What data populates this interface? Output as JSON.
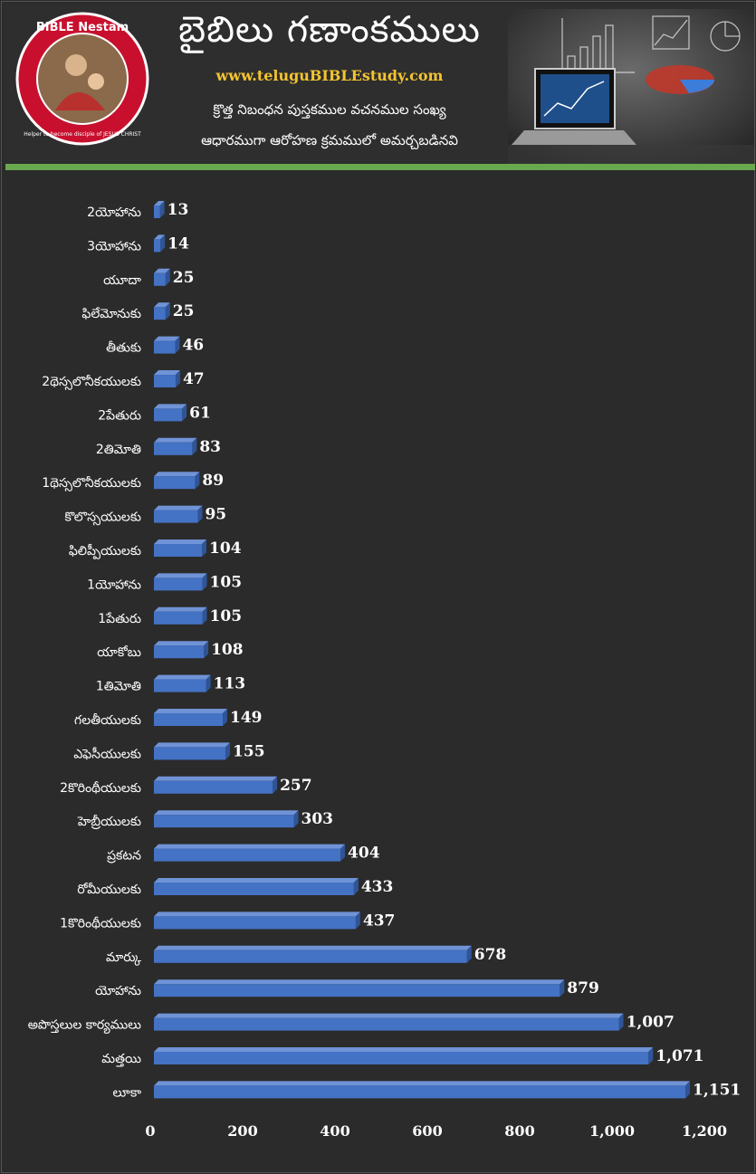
{
  "header": {
    "title": "బైబిలు గణాంకములు",
    "website": "www.teluguBIBLEstudy.com",
    "subtitle_line1": "క్రొత్త నిబంధన పుస్తకముల వచనముల సంఖ్య",
    "subtitle_line2": "ఆధారముగా ఆరోహణ క్రమములో అమర్చబడినవి",
    "logo_text": "BIBLE Nestam",
    "logo_tagline": "Helper to become disciple of JESUS CHRIST"
  },
  "colors": {
    "bar": "#4472c4",
    "bar_side": "#2f5597",
    "accent": "#6aa84f",
    "site_text": "#f4c430"
  },
  "chart_data": {
    "type": "bar",
    "orientation": "horizontal",
    "categories": [
      "2యోహాను",
      "3యోహాను",
      "యూదా",
      "ఫిలేమోనుకు",
      "తీతుకు",
      "2థెస్సలొనీకయులకు",
      "2పేతురు",
      "2తిమోతి",
      "1థెస్సలొనీకయులకు",
      "కొలొస్సయులకు",
      "ఫిలిప్పీయులకు",
      "1యోహాను",
      "1పేతురు",
      "యాకోబు",
      "1తిమోతి",
      "గలతీయులకు",
      "ఎఫెసీయులకు",
      "2కొరింథీయులకు",
      "హెబ్రీయులకు",
      "ప్రకటన",
      "రోమీయులకు",
      "1కొరింథీయులకు",
      "మార్కు",
      "యోహాను",
      "అపొస్తలుల కార్యములు",
      "మత్తయి",
      "లూకా"
    ],
    "values": [
      13,
      14,
      25,
      25,
      46,
      47,
      61,
      83,
      89,
      95,
      104,
      105,
      105,
      108,
      113,
      149,
      155,
      257,
      303,
      404,
      433,
      437,
      678,
      879,
      1007,
      1071,
      1151
    ],
    "value_labels": [
      "13",
      "14",
      "25",
      "25",
      "46",
      "47",
      "61",
      "83",
      "89",
      "95",
      "104",
      "105",
      "105",
      "108",
      "113",
      "149",
      "155",
      "257",
      "303",
      "404",
      "433",
      "437",
      "678",
      "879",
      "1,007",
      "1,071",
      "1,151"
    ],
    "xlim": [
      0,
      1200
    ],
    "x_ticks": [
      0,
      200,
      400,
      600,
      800,
      1000,
      1200
    ],
    "x_tick_labels": [
      "0",
      "200",
      "400",
      "600",
      "800",
      "1,000",
      "1,200"
    ],
    "grid": false,
    "legend": "none"
  }
}
